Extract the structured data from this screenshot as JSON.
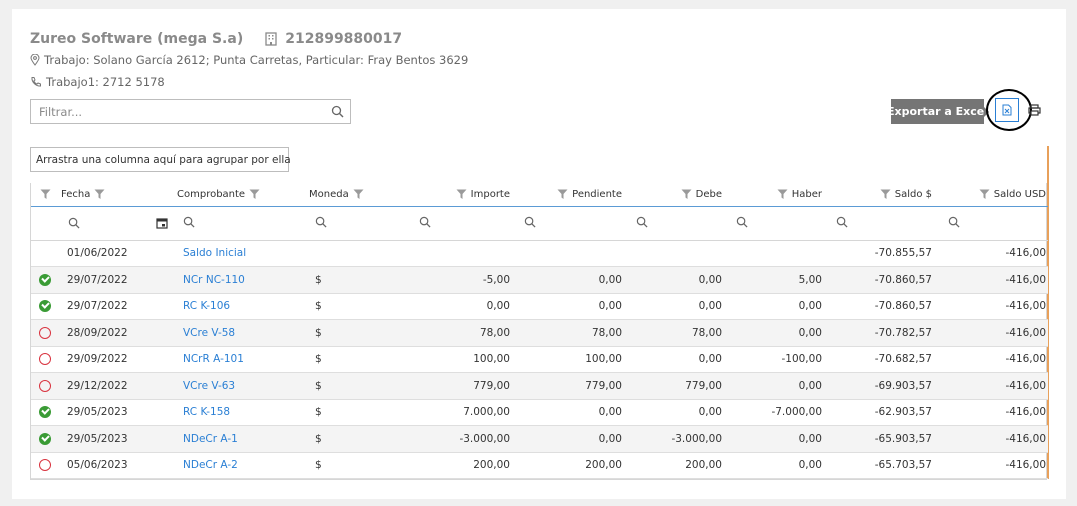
{
  "header": {
    "company": "Zureo Software (mega S.a)",
    "tax_id": "212899880017",
    "address": "Trabajo: Solano García 2612; Punta Carretas, Particular: Fray Bentos 3629",
    "phone": "Trabajo1: 2712 5178"
  },
  "filter": {
    "placeholder": "Filtrar..."
  },
  "toolbar": {
    "export_tooltip": "Exportar a Excel"
  },
  "grid": {
    "group_panel": "Arrastra una columna aquí para agrupar por ella",
    "columns": {
      "fecha": "Fecha",
      "comprobante": "Comprobante",
      "moneda": "Moneda",
      "importe": "Importe",
      "pendiente": "Pendiente",
      "debe": "Debe",
      "haber": "Haber",
      "saldo": "Saldo $",
      "saldo_usd": "Saldo USD"
    },
    "rows": [
      {
        "status": "",
        "fecha": "01/06/2022",
        "comprobante": "Saldo Inicial",
        "moneda": "",
        "importe": "",
        "pendiente": "",
        "debe": "",
        "haber": "",
        "saldo": "-70.855,57",
        "saldo_usd": "-416,00"
      },
      {
        "status": "ok",
        "fecha": "29/07/2022",
        "comprobante": "NCr NC-110",
        "moneda": "$",
        "importe": "-5,00",
        "pendiente": "0,00",
        "debe": "0,00",
        "haber": "5,00",
        "saldo": "-70.860,57",
        "saldo_usd": "-416,00"
      },
      {
        "status": "ok",
        "fecha": "29/07/2022",
        "comprobante": "RC K-106",
        "moneda": "$",
        "importe": "0,00",
        "pendiente": "0,00",
        "debe": "0,00",
        "haber": "0,00",
        "saldo": "-70.860,57",
        "saldo_usd": "-416,00"
      },
      {
        "status": "pend",
        "fecha": "28/09/2022",
        "comprobante": "VCre V-58",
        "moneda": "$",
        "importe": "78,00",
        "pendiente": "78,00",
        "debe": "78,00",
        "haber": "0,00",
        "saldo": "-70.782,57",
        "saldo_usd": "-416,00"
      },
      {
        "status": "pend",
        "fecha": "29/09/2022",
        "comprobante": "NCrR A-101",
        "moneda": "$",
        "importe": "100,00",
        "pendiente": "100,00",
        "debe": "0,00",
        "haber": "-100,00",
        "saldo": "-70.682,57",
        "saldo_usd": "-416,00"
      },
      {
        "status": "pend",
        "fecha": "29/12/2022",
        "comprobante": "VCre V-63",
        "moneda": "$",
        "importe": "779,00",
        "pendiente": "779,00",
        "debe": "779,00",
        "haber": "0,00",
        "saldo": "-69.903,57",
        "saldo_usd": "-416,00"
      },
      {
        "status": "ok",
        "fecha": "29/05/2023",
        "comprobante": "RC K-158",
        "moneda": "$",
        "importe": "7.000,00",
        "pendiente": "0,00",
        "debe": "0,00",
        "haber": "-7.000,00",
        "saldo": "-62.903,57",
        "saldo_usd": "-416,00"
      },
      {
        "status": "ok",
        "fecha": "29/05/2023",
        "comprobante": "NDeCr A-1",
        "moneda": "$",
        "importe": "-3.000,00",
        "pendiente": "0,00",
        "debe": "-3.000,00",
        "haber": "0,00",
        "saldo": "-65.903,57",
        "saldo_usd": "-416,00"
      },
      {
        "status": "pend",
        "fecha": "05/06/2023",
        "comprobante": "NDeCr A-2",
        "moneda": "$",
        "importe": "200,00",
        "pendiente": "200,00",
        "debe": "200,00",
        "haber": "0,00",
        "saldo": "-65.703,57",
        "saldo_usd": "-416,00"
      }
    ]
  },
  "colors": {
    "link": "#2a7fd4",
    "ok": "#3a9b35",
    "pending": "#d9333f",
    "header_line": "#5b9bd5"
  }
}
